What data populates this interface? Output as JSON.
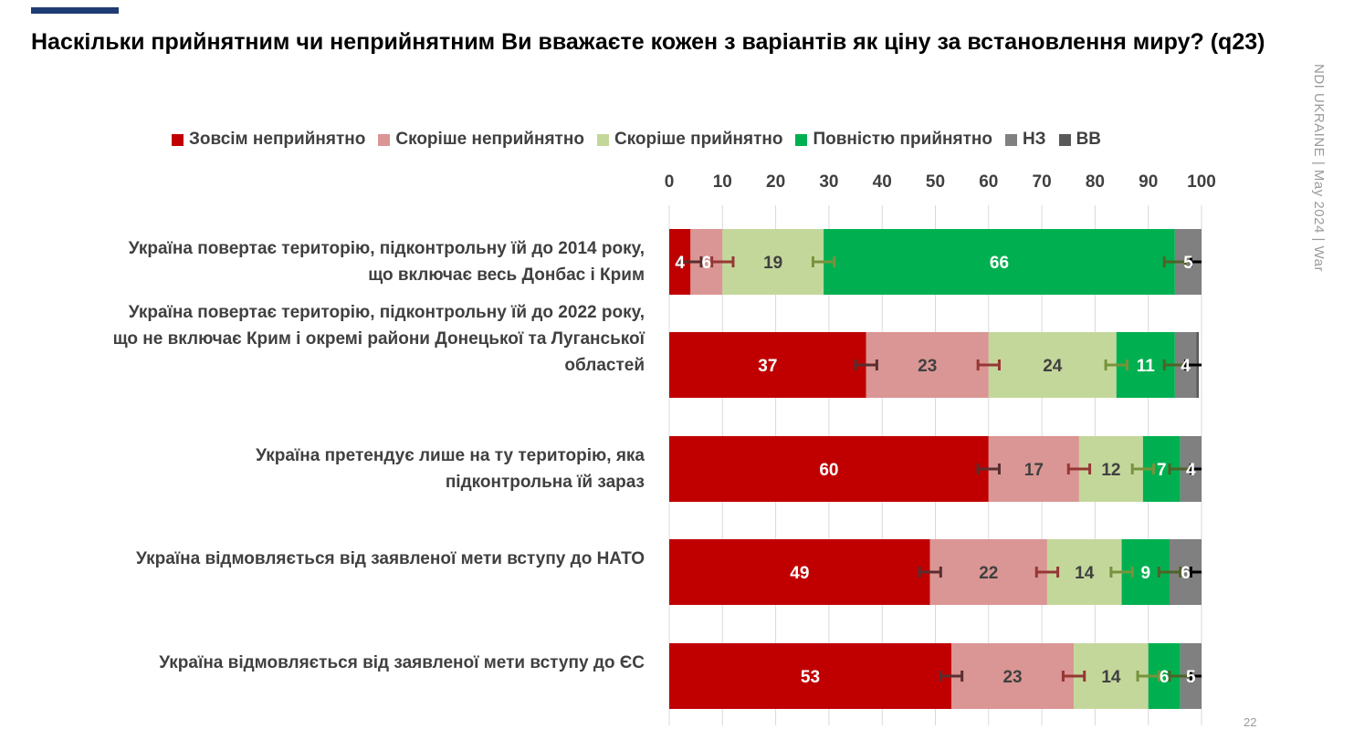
{
  "header": {
    "title": "Наскільки прийнятним чи неприйнятним Ви вважаєте кожен з варіантів як ціну за встановлення миру? (q23)",
    "side_text": "NDI UKRAINE | May 2024 | War",
    "page_number": "22"
  },
  "chart_data": {
    "type": "bar",
    "orientation": "horizontal-stacked",
    "title": "Наскільки прийнятним чи неприйнятним Ви вважаєте кожен з варіантів як ціну за встановлення миру? (q23)",
    "xlim": [
      0,
      100
    ],
    "xticks": [
      "0",
      "10",
      "20",
      "30",
      "40",
      "50",
      "60",
      "70",
      "80",
      "90",
      "100"
    ],
    "grid": true,
    "legend_position": "top",
    "error_margin": 2,
    "categories": [
      "Україна повертає територію, підконтрольну їй до 2014 року, що включає весь Донбас і Крим",
      "Україна повертає територію, підконтрольну їй до 2022 року, що не включає Крим і окремі райони Донецької та Луганської областей",
      "Україна претендує лише на ту територію, яка підконтрольна їй зараз",
      "Україна відмовляється  від заявленої мети вступу до НАТО",
      "Україна відмовляється  від заявленої мети вступу до ЄС"
    ],
    "series": [
      {
        "name": "Зовсім неприйнятно",
        "color": "#c00000",
        "label_color": "#ffffff",
        "values": [
          4,
          37,
          60,
          49,
          53
        ]
      },
      {
        "name": "Скоріше неприйнятно",
        "color": "#da9694",
        "label_color": "#404040",
        "values": [
          6,
          23,
          17,
          22,
          23
        ]
      },
      {
        "name": "Скоріше прийнятно",
        "color": "#c4d79b",
        "label_color": "#404040",
        "values": [
          19,
          24,
          12,
          14,
          14
        ]
      },
      {
        "name": "Повністю прийнятно",
        "color": "#00b050",
        "label_color": "#ffffff",
        "values": [
          66,
          11,
          7,
          9,
          6
        ]
      },
      {
        "name": "НЗ",
        "color": "#808080",
        "label_color": "#ffffff",
        "values": [
          5,
          4,
          4,
          6,
          5
        ]
      },
      {
        "name": "ВВ",
        "color": "#595959",
        "label_color": "#ffffff",
        "values": [
          0.5,
          0.5,
          0.5,
          0,
          0
        ]
      }
    ]
  }
}
